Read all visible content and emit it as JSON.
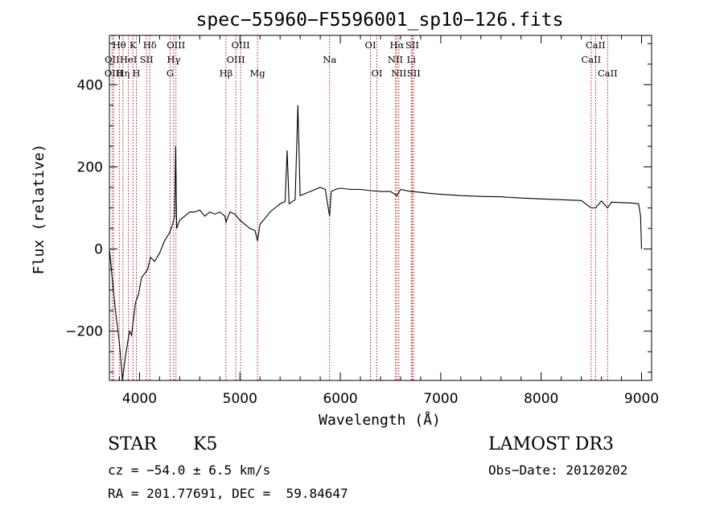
{
  "chart_data": {
    "type": "line",
    "title": "spec−55960−F5596001_sp10−126.fits",
    "xlabel": "Wavelength (Å)",
    "ylabel": "Flux (relative)",
    "xlim": [
      3700,
      9100
    ],
    "ylim": [
      -320,
      520
    ],
    "x_ticks": [
      4000,
      5000,
      6000,
      7000,
      8000,
      9000
    ],
    "y_ticks": [
      -200,
      0,
      200,
      400
    ],
    "series": [
      {
        "name": "spectrum",
        "x": [
          3700,
          3760,
          3800,
          3830,
          3860,
          3880,
          3900,
          3920,
          3940,
          3960,
          3990,
          4020,
          4050,
          4080,
          4110,
          4150,
          4200,
          4250,
          4300,
          4330,
          4350,
          4360,
          4370,
          4400,
          4450,
          4500,
          4550,
          4600,
          4650,
          4700,
          4750,
          4800,
          4850,
          4861,
          4900,
          4950,
          5000,
          5050,
          5100,
          5150,
          5175,
          5200,
          5250,
          5300,
          5350,
          5400,
          5450,
          5470,
          5490,
          5550,
          5577,
          5600,
          5650,
          5700,
          5750,
          5800,
          5850,
          5893,
          5910,
          5950,
          6000,
          6100,
          6200,
          6300,
          6400,
          6500,
          6563,
          6600,
          6700,
          6800,
          6900,
          7000,
          7200,
          7400,
          7600,
          7800,
          8000,
          8200,
          8400,
          8498,
          8542,
          8600,
          8662,
          8700,
          8800,
          8900,
          8970,
          8990,
          9000
        ],
        "y": [
          0,
          -150,
          -230,
          -330,
          -260,
          -230,
          -200,
          -210,
          -170,
          -130,
          -110,
          -70,
          -60,
          -50,
          -20,
          -30,
          -10,
          20,
          40,
          60,
          80,
          250,
          50,
          70,
          80,
          90,
          90,
          95,
          80,
          90,
          85,
          90,
          80,
          65,
          90,
          85,
          70,
          60,
          50,
          45,
          20,
          60,
          75,
          90,
          100,
          110,
          115,
          240,
          110,
          120,
          350,
          130,
          135,
          140,
          145,
          150,
          145,
          80,
          140,
          145,
          148,
          145,
          145,
          142,
          140,
          140,
          130,
          145,
          140,
          138,
          135,
          133,
          130,
          128,
          127,
          124,
          122,
          120,
          118,
          100,
          100,
          117,
          100,
          114,
          113,
          112,
          110,
          80,
          0
        ]
      }
    ],
    "emission_lines": [
      {
        "label": "Hθ",
        "x": 3798,
        "row": 0
      },
      {
        "label": "Hη",
        "x": 3835,
        "row": 2
      },
      {
        "label": "OII",
        "x": 3727,
        "row": 1
      },
      {
        "label": "OIII",
        "x": 3743,
        "row": 2
      },
      {
        "label": "HeI",
        "x": 3889,
        "row": 1
      },
      {
        "label": "K",
        "x": 3934,
        "row": 0
      },
      {
        "label": "H",
        "x": 3969,
        "row": 2
      },
      {
        "label": "SII",
        "x": 4070,
        "row": 1
      },
      {
        "label": "Hδ",
        "x": 4102,
        "row": 0
      },
      {
        "label": "G",
        "x": 4305,
        "row": 2
      },
      {
        "label": "Hγ",
        "x": 4340,
        "row": 1
      },
      {
        "label": "OIII",
        "x": 4363,
        "row": 0
      },
      {
        "label": "Hβ",
        "x": 4861,
        "row": 2
      },
      {
        "label": "OIII",
        "x": 4959,
        "row": 1
      },
      {
        "label": "OIII",
        "x": 5007,
        "row": 0
      },
      {
        "label": "Mg",
        "x": 5175,
        "row": 2
      },
      {
        "label": "Na",
        "x": 5893,
        "row": 1
      },
      {
        "label": "OI",
        "x": 6300,
        "row": 0
      },
      {
        "label": "OI",
        "x": 6364,
        "row": 2
      },
      {
        "label": "NII",
        "x": 6548,
        "row": 1
      },
      {
        "label": "Hα",
        "x": 6563,
        "row": 0
      },
      {
        "label": "NII",
        "x": 6583,
        "row": 2
      },
      {
        "label": "Li",
        "x": 6707,
        "row": 1
      },
      {
        "label": "SII",
        "x": 6716,
        "row": 0
      },
      {
        "label": "SII",
        "x": 6731,
        "row": 2
      },
      {
        "label": "CaII",
        "x": 8498,
        "row": 1
      },
      {
        "label": "CaII",
        "x": 8542,
        "row": 0
      },
      {
        "label": "CaII",
        "x": 8662,
        "row": 2
      }
    ]
  },
  "info": {
    "object_class": "STAR",
    "subclass": "K5",
    "redshift": "cz = −54.0 ± 6.5 km/s",
    "coords": "RA = 201.77691, DEC =  59.84647",
    "survey": "LAMOST DR3",
    "obs_date": "Obs−Date: 20120202"
  },
  "colors": {
    "line": "#000000",
    "marker": "#b00000",
    "axes": "#000000",
    "background": "#ffffff"
  }
}
